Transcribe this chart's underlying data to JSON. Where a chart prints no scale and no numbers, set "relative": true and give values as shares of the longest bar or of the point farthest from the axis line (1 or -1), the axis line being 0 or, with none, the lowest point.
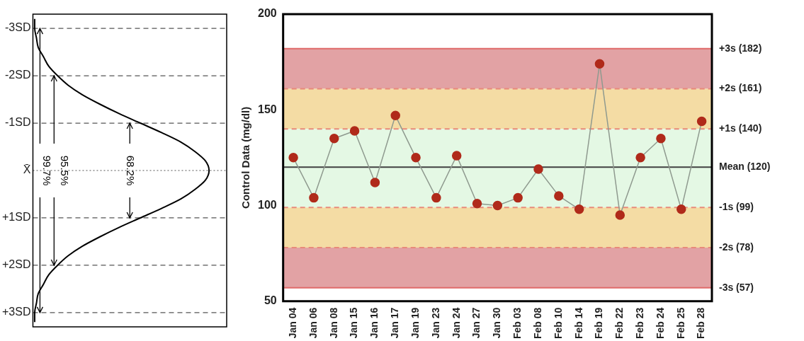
{
  "chart_data": [
    {
      "type": "line",
      "orientation": "horizontal",
      "relative": true,
      "x": [
        -3.2,
        -3,
        -2.8,
        -2.6,
        -2.4,
        -2.2,
        -2,
        -1.8,
        -1.6,
        -1.4,
        -1.2,
        -1,
        -0.8,
        -0.6,
        -0.4,
        -0.2,
        0,
        0.2,
        0.4,
        0.6,
        0.8,
        1,
        1.2,
        1.4,
        1.6,
        1.8,
        2,
        2.2,
        2.4,
        2.6,
        2.8,
        3,
        3.2
      ],
      "series": [
        {
          "color": "#000000",
          "values": [
            0.01,
            0.01,
            0.02,
            0.03,
            0.06,
            0.09,
            0.14,
            0.2,
            0.28,
            0.38,
            0.49,
            0.61,
            0.73,
            0.84,
            0.92,
            0.98,
            1,
            0.98,
            0.92,
            0.84,
            0.73,
            0.61,
            0.49,
            0.38,
            0.28,
            0.2,
            0.14,
            0.09,
            0.06,
            0.03,
            0.02,
            0.01,
            0.01
          ]
        }
      ],
      "ylim": [
        3.3,
        -3.3
      ],
      "yticks": [
        {
          "value": -3,
          "label": "-3SD"
        },
        {
          "value": -2,
          "label": "-2SD"
        },
        {
          "value": -1,
          "label": "-1SD"
        },
        {
          "value": 0,
          "label": "X̄"
        },
        {
          "value": 1,
          "label": "+1SD"
        },
        {
          "value": 2,
          "label": "+2SD"
        },
        {
          "value": 3,
          "label": "+3SD"
        }
      ],
      "ref_lines": [
        {
          "axis": "y",
          "value": -3,
          "line_style": "dashed",
          "color": "#555555"
        },
        {
          "axis": "y",
          "value": -2,
          "line_style": "dashed",
          "color": "#555555"
        },
        {
          "axis": "y",
          "value": -1,
          "line_style": "dashed",
          "color": "#555555"
        },
        {
          "axis": "y",
          "value": 0,
          "line_style": "dotted",
          "color": "#555555"
        },
        {
          "axis": "y",
          "value": 1,
          "line_style": "dashed",
          "color": "#555555"
        },
        {
          "axis": "y",
          "value": 2,
          "line_style": "dashed",
          "color": "#555555"
        },
        {
          "axis": "y",
          "value": 3,
          "line_style": "dashed",
          "color": "#555555"
        }
      ],
      "annotations": [
        "68.2%",
        "95.5%",
        "99.7%"
      ],
      "marker": "none",
      "line_style": "solid",
      "grid": false,
      "legend": false,
      "tick_labels": "y"
    },
    {
      "type": "line",
      "ylabel": "Control Data (mg/dl)",
      "categories": [
        "Jan 04",
        "Jan 06",
        "Jan 08",
        "Jan 15",
        "Jan 16",
        "Jan 17",
        "Jan 19",
        "Jan 23",
        "Jan 24",
        "Jan 27",
        "Jan 30",
        "Feb 03",
        "Feb 08",
        "Feb 10",
        "Feb 14",
        "Feb 19",
        "Feb 22",
        "Feb 23",
        "Feb 24",
        "Feb 25",
        "Feb 28"
      ],
      "series": [
        {
          "color": "#b02a1a",
          "values": [
            125,
            104,
            135,
            139,
            112,
            147,
            125,
            104,
            126,
            101,
            100,
            104,
            119,
            105,
            98,
            174,
            95,
            125,
            135,
            98,
            144
          ]
        }
      ],
      "ylim": [
        50,
        200
      ],
      "yticks": [
        50,
        100,
        150,
        200
      ],
      "bands": [
        {
          "axis": "y",
          "from": 161,
          "to": 182,
          "color": "#e2a2a4"
        },
        {
          "axis": "y",
          "from": 140,
          "to": 161,
          "color": "#f4dca4"
        },
        {
          "axis": "y",
          "from": 99,
          "to": 140,
          "color": "#e4f8e4"
        },
        {
          "axis": "y",
          "from": 78,
          "to": 99,
          "color": "#f4dca4"
        },
        {
          "axis": "y",
          "from": 57,
          "to": 78,
          "color": "#e2a2a4"
        }
      ],
      "ref_lines": [
        {
          "axis": "y",
          "value": 182,
          "label": "+3s (182)",
          "color": "#e06a6a",
          "line_style": "solid"
        },
        {
          "axis": "y",
          "value": 161,
          "label": "+2s (161)",
          "color": "#e88a7a",
          "line_style": "dashed"
        },
        {
          "axis": "y",
          "value": 140,
          "label": "+1s (140)",
          "color": "#e88a7a",
          "line_style": "dashed"
        },
        {
          "axis": "y",
          "value": 120,
          "label": "Mean (120)",
          "color": "#404040",
          "line_style": "solid"
        },
        {
          "axis": "y",
          "value": 99,
          "label": "-1s (99)",
          "color": "#e88a7a",
          "line_style": "dashed"
        },
        {
          "axis": "y",
          "value": 78,
          "label": "-2s (78)",
          "color": "#e88a7a",
          "line_style": "dashed"
        },
        {
          "axis": "y",
          "value": 57,
          "label": "-3s (57)",
          "color": "#e06a6a",
          "line_style": "solid"
        }
      ],
      "marker": "circle",
      "line_style": "solid",
      "grid": false,
      "legend": false
    }
  ]
}
